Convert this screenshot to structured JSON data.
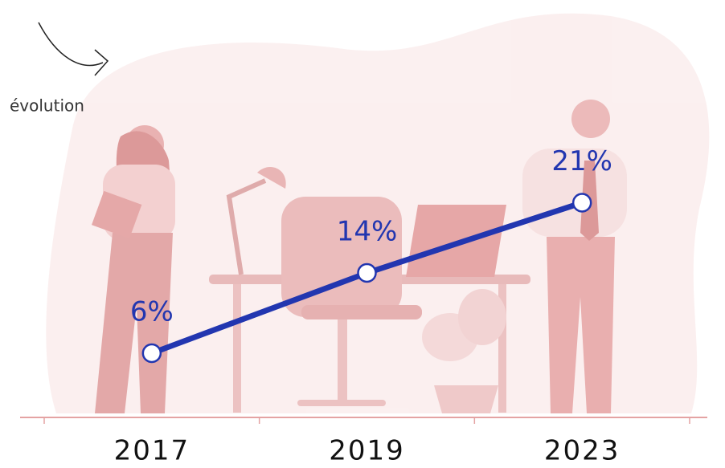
{
  "chart_data": {
    "type": "line",
    "annotation": "évolution",
    "categories": [
      "2017",
      "2019",
      "2023"
    ],
    "values": [
      6,
      14,
      21
    ],
    "value_labels": [
      "6%",
      "14%",
      "21%"
    ],
    "color": "#2236b0"
  }
}
